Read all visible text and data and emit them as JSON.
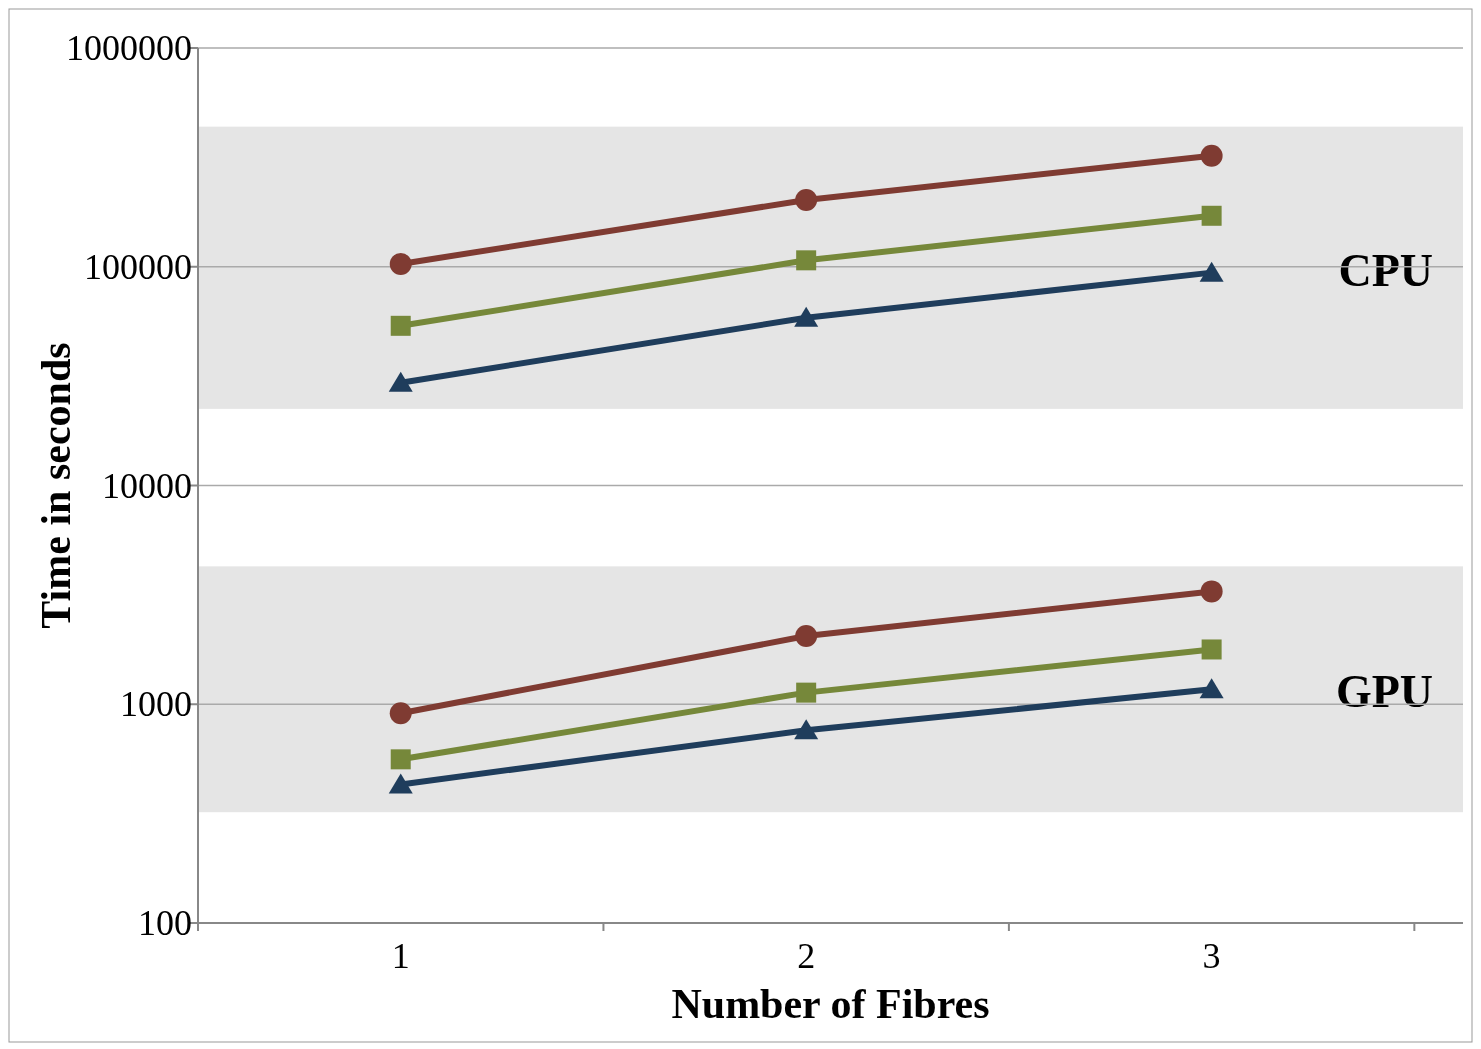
{
  "chart_data": {
    "type": "line",
    "xlabel": "Number of Fibres",
    "ylabel": "Time in seconds",
    "categories": [
      "1",
      "2",
      "3"
    ],
    "log": "y",
    "ylim": [
      100,
      1000000
    ],
    "yticks": [
      100,
      1000,
      10000,
      100000,
      1000000
    ],
    "grid": "y",
    "series": [
      {
        "color": "#7f3b32",
        "marker": "circle",
        "values": [
          103000,
          202000,
          322000
        ]
      },
      {
        "color": "#76883a",
        "marker": "square",
        "values": [
          53700,
          107000,
          171000
        ]
      },
      {
        "color": "#1f3d5c",
        "marker": "triangle",
        "values": [
          29500,
          58500,
          94000
        ]
      },
      {
        "color": "#7f3b32",
        "marker": "circle",
        "values": [
          910,
          2050,
          3280
        ]
      },
      {
        "color": "#76883a",
        "marker": "square",
        "values": [
          560,
          1130,
          1780
        ]
      },
      {
        "color": "#1f3d5c",
        "marker": "triangle",
        "values": [
          430,
          760,
          1170
        ]
      }
    ],
    "bands": [
      {
        "axis": "y",
        "from": 22400,
        "to": 437000,
        "label": "CPU",
        "color": "#e5e5e5"
      },
      {
        "axis": "y",
        "from": 321,
        "to": 4270,
        "label": "GPU",
        "color": "#e5e5e5"
      }
    ]
  }
}
